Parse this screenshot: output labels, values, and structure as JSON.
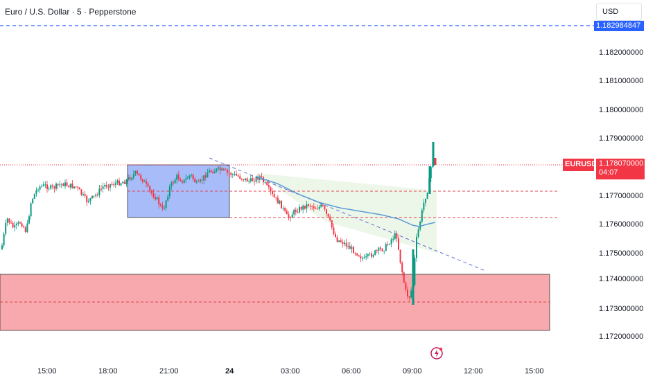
{
  "header": {
    "title": "Euro / U.S. Dollar · 5 · Pepperstone",
    "currency": "USD"
  },
  "price_axis": {
    "ticks": [
      "1.182000000",
      "1.181000000",
      "1.180000000",
      "1.179000000",
      "1.177000000",
      "1.176000000",
      "1.175000000",
      "1.174000000",
      "1.173000000",
      "1.172000000"
    ],
    "tick_values": [
      1.182,
      1.181,
      1.18,
      1.179,
      1.177,
      1.176,
      1.175,
      1.174,
      1.173,
      1.172
    ],
    "top_line_label": "1.182984847",
    "symbol_tag": "EURUSD",
    "current_price": "1.178070000",
    "countdown": "04:07"
  },
  "time_axis": {
    "ticks": [
      "15:00",
      "18:00",
      "21:00",
      "24",
      "03:00",
      "06:00",
      "09:00",
      "12:00",
      "15:00"
    ]
  },
  "colors": {
    "bull": "#089981",
    "bear": "#f23645",
    "ma_line": "#5b9bd5",
    "blue_line": "#2962ff",
    "demand_zone": "#f8a9ae",
    "range_box": "#a7bcf8"
  },
  "icons": {
    "flash": "flash-icon"
  }
}
